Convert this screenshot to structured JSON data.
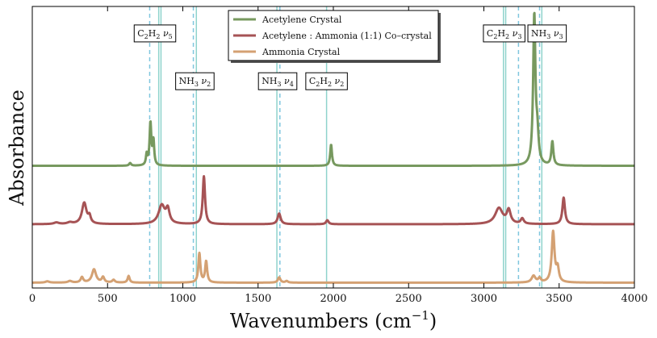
{
  "chart_data": {
    "type": "line",
    "xlabel": "Wavenumbers (cm",
    "xlabel_sup": "−1",
    "xlabel_close": ")",
    "ylabel": "Absorbance",
    "xlim": [
      0,
      4000
    ],
    "x_ticks": [
      0,
      500,
      1000,
      1500,
      2000,
      2500,
      3000,
      3500,
      4000
    ],
    "grid": false,
    "legend_position": "top-center",
    "colors": {
      "acetylene": "#77995f",
      "cocrystal": "#a65355",
      "ammonia": "#d4a173",
      "ref_line": "#8fd3cc",
      "ref_dashed": "#7fc6de",
      "frame": "#000000"
    },
    "series": [
      {
        "name": "Acetylene Crystal",
        "key": "acetylene",
        "baseline": 0.44,
        "peaks": [
          {
            "x": 650,
            "h": 0.01,
            "w": 8
          },
          {
            "x": 760,
            "h": 0.04,
            "w": 6
          },
          {
            "x": 785,
            "h": 0.16,
            "w": 7
          },
          {
            "x": 805,
            "h": 0.09,
            "w": 6
          },
          {
            "x": 1985,
            "h": 0.08,
            "w": 7
          },
          {
            "x": 3335,
            "h": 0.56,
            "w": 9
          },
          {
            "x": 3355,
            "h": 0.1,
            "w": 10
          },
          {
            "x": 3455,
            "h": 0.09,
            "w": 8
          }
        ]
      },
      {
        "name": "Acetylene : Ammonia (1:1) Co–crystal",
        "key": "cocrystal",
        "baseline": 0.22,
        "peaks": [
          {
            "x": 160,
            "h": 0.006,
            "w": 20
          },
          {
            "x": 250,
            "h": 0.006,
            "w": 20
          },
          {
            "x": 345,
            "h": 0.08,
            "w": 18
          },
          {
            "x": 380,
            "h": 0.025,
            "w": 10
          },
          {
            "x": 860,
            "h": 0.07,
            "w": 25
          },
          {
            "x": 900,
            "h": 0.05,
            "w": 14
          },
          {
            "x": 1140,
            "h": 0.18,
            "w": 9
          },
          {
            "x": 1640,
            "h": 0.04,
            "w": 12
          },
          {
            "x": 1960,
            "h": 0.015,
            "w": 10
          },
          {
            "x": 3100,
            "h": 0.06,
            "w": 30
          },
          {
            "x": 3165,
            "h": 0.05,
            "w": 15
          },
          {
            "x": 3255,
            "h": 0.02,
            "w": 12
          },
          {
            "x": 3530,
            "h": 0.1,
            "w": 10
          }
        ]
      },
      {
        "name": "Ammonia Crystal",
        "key": "ammonia",
        "baseline": 0.0,
        "peaks": [
          {
            "x": 100,
            "h": 0.005,
            "w": 15
          },
          {
            "x": 250,
            "h": 0.006,
            "w": 15
          },
          {
            "x": 330,
            "h": 0.02,
            "w": 10
          },
          {
            "x": 410,
            "h": 0.05,
            "w": 16
          },
          {
            "x": 470,
            "h": 0.02,
            "w": 10
          },
          {
            "x": 540,
            "h": 0.01,
            "w": 10
          },
          {
            "x": 640,
            "h": 0.025,
            "w": 8
          },
          {
            "x": 1110,
            "h": 0.11,
            "w": 8
          },
          {
            "x": 1155,
            "h": 0.08,
            "w": 8
          },
          {
            "x": 1640,
            "h": 0.02,
            "w": 10
          },
          {
            "x": 1690,
            "h": 0.006,
            "w": 10
          },
          {
            "x": 3330,
            "h": 0.025,
            "w": 15
          },
          {
            "x": 3370,
            "h": 0.015,
            "w": 10
          },
          {
            "x": 3460,
            "h": 0.19,
            "w": 11
          },
          {
            "x": 3490,
            "h": 0.05,
            "w": 10
          }
        ]
      }
    ],
    "reference_lines": [
      {
        "x": 780,
        "style": "dashed"
      },
      {
        "x": 840,
        "style": "solid"
      },
      {
        "x": 855,
        "style": "solid"
      },
      {
        "x": 1070,
        "style": "dashed"
      },
      {
        "x": 1090,
        "style": "solid"
      },
      {
        "x": 1625,
        "style": "solid"
      },
      {
        "x": 1645,
        "style": "dashed"
      },
      {
        "x": 1955,
        "style": "solid"
      },
      {
        "x": 3130,
        "style": "solid"
      },
      {
        "x": 3145,
        "style": "solid"
      },
      {
        "x": 3230,
        "style": "dashed"
      },
      {
        "x": 3370,
        "style": "dashed"
      },
      {
        "x": 3385,
        "style": "solid"
      }
    ],
    "annotations": [
      {
        "mol": "C",
        "sub1": "2",
        "mol2": "H",
        "sub2": "2",
        "mode": "ν",
        "mode_sub": "5",
        "x": 815,
        "y": 0.94
      },
      {
        "mol": "NH",
        "sub1": "3",
        "mol2": "",
        "sub2": "",
        "mode": "ν",
        "mode_sub": "2",
        "x": 1080,
        "y": 0.76
      },
      {
        "mol": "NH",
        "sub1": "3",
        "mol2": "",
        "sub2": "",
        "mode": "ν",
        "mode_sub": "4",
        "x": 1630,
        "y": 0.76
      },
      {
        "mol": "C",
        "sub1": "2",
        "mol2": "H",
        "sub2": "2",
        "mode": "ν",
        "mode_sub": "2",
        "x": 1955,
        "y": 0.76
      },
      {
        "mol": "C",
        "sub1": "2",
        "mol2": "H",
        "sub2": "2",
        "mode": "ν",
        "mode_sub": "3",
        "x": 3135,
        "y": 0.94
      },
      {
        "mol": "NH",
        "sub1": "3",
        "mol2": "",
        "sub2": "",
        "mode": "ν",
        "mode_sub": "3",
        "x": 3420,
        "y": 0.94
      }
    ]
  }
}
